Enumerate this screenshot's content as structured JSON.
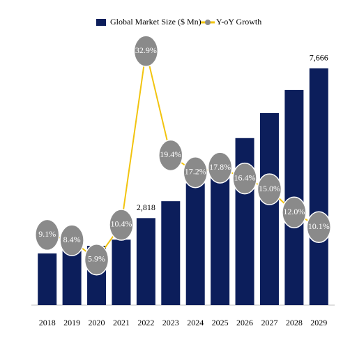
{
  "chart_data": {
    "type": "bar-line",
    "categories": [
      "2018",
      "2019",
      "2020",
      "2021",
      "2022",
      "2023",
      "2024",
      "2025",
      "2026",
      "2027",
      "2028",
      "2029"
    ],
    "series": [
      {
        "name": "Global Market Size ($ Mn)",
        "color": "#0c1e5b",
        "type": "bar",
        "values": [
          1673,
          1814,
          1921,
          2120,
          2818,
          3365,
          3944,
          4646,
          5408,
          6219,
          6965,
          7666
        ],
        "value_labels": [
          null,
          null,
          null,
          null,
          "2,818",
          null,
          null,
          null,
          null,
          null,
          null,
          "7,666"
        ]
      },
      {
        "name": "Y-oY Growth",
        "color": "#f2c40f",
        "type": "line",
        "axis": "y2",
        "marker_color": "#8a8a8a",
        "values": [
          9.1,
          8.4,
          5.9,
          10.4,
          32.9,
          19.4,
          17.2,
          17.8,
          16.4,
          15.0,
          12.0,
          10.1
        ],
        "value_labels": [
          "9.1%",
          "8.4%",
          "5.9%",
          "10.4%",
          "32.9%",
          "19.4%",
          "17.2%",
          "17.8%",
          "16.4%",
          "15.0%",
          "12.0%",
          "10.1%"
        ]
      }
    ],
    "ylim": [
      0,
      8500
    ],
    "y2lim": [
      0,
      34
    ],
    "legend": "top"
  }
}
